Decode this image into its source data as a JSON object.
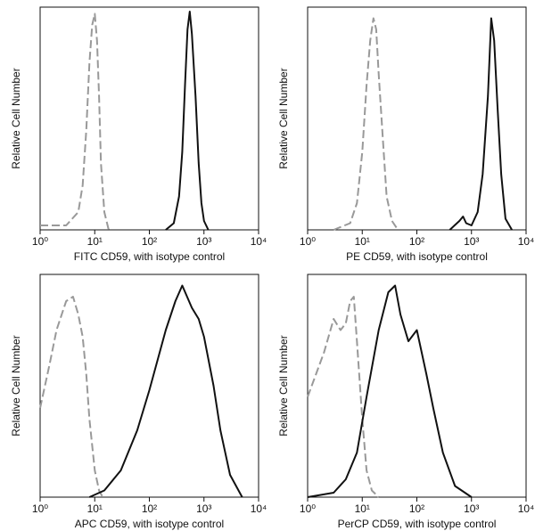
{
  "chart_data": [
    {
      "type": "line",
      "x_label": "FITC CD59, with isotype control",
      "y_label": "Relative Cell Number",
      "xscale": "log",
      "xlim": [
        1,
        10000
      ],
      "ylim": [
        0,
        100
      ],
      "xticks": [
        {
          "value": 1,
          "label": "10⁰"
        },
        {
          "value": 10,
          "label": "10¹"
        },
        {
          "value": 100,
          "label": "10²"
        },
        {
          "value": 1000,
          "label": "10³"
        },
        {
          "value": 10000,
          "label": "10⁴"
        }
      ],
      "series": [
        {
          "color": "#999999",
          "dashed": true,
          "x": [
            1,
            3,
            5,
            6,
            7,
            8,
            9,
            10,
            11,
            12,
            13,
            15,
            18
          ],
          "values": [
            2,
            2,
            8,
            20,
            45,
            75,
            92,
            97,
            85,
            60,
            30,
            8,
            0
          ]
        },
        {
          "color": "#111111",
          "dashed": false,
          "x": [
            200,
            280,
            350,
            400,
            450,
            500,
            550,
            600,
            700,
            800,
            900,
            1000,
            1200
          ],
          "values": [
            0,
            3,
            15,
            35,
            65,
            90,
            98,
            88,
            60,
            30,
            12,
            4,
            0
          ]
        }
      ]
    },
    {
      "type": "line",
      "x_label": "PE CD59, with isotype control",
      "y_label": "Relative Cell Number",
      "xscale": "log",
      "xlim": [
        1,
        10000
      ],
      "ylim": [
        0,
        100
      ],
      "xticks": [
        {
          "value": 1,
          "label": "10⁰"
        },
        {
          "value": 10,
          "label": "10¹"
        },
        {
          "value": 100,
          "label": "10²"
        },
        {
          "value": 1000,
          "label": "10³"
        },
        {
          "value": 10000,
          "label": "10⁴"
        }
      ],
      "series": [
        {
          "color": "#999999",
          "dashed": true,
          "x": [
            3,
            6,
            8,
            10,
            12,
            14,
            16,
            18,
            20,
            24,
            28,
            35,
            45
          ],
          "values": [
            0,
            3,
            12,
            35,
            65,
            85,
            95,
            90,
            70,
            40,
            15,
            4,
            0
          ]
        },
        {
          "color": "#111111",
          "dashed": false,
          "x": [
            400,
            600,
            700,
            800,
            1000,
            1300,
            1600,
            2000,
            2300,
            2600,
            3000,
            3500,
            4200,
            5500
          ],
          "values": [
            0,
            4,
            6,
            3,
            2,
            8,
            25,
            60,
            95,
            85,
            55,
            25,
            5,
            0
          ]
        }
      ]
    },
    {
      "type": "line",
      "x_label": "APC CD59, with isotype control",
      "y_label": "Relative Cell Number",
      "xscale": "log",
      "xlim": [
        1,
        10000
      ],
      "ylim": [
        0,
        100
      ],
      "xticks": [
        {
          "value": 1,
          "label": "10⁰"
        },
        {
          "value": 10,
          "label": "10¹"
        },
        {
          "value": 100,
          "label": "10²"
        },
        {
          "value": 1000,
          "label": "10³"
        },
        {
          "value": 10000,
          "label": "10⁴"
        }
      ],
      "series": [
        {
          "color": "#999999",
          "dashed": true,
          "x": [
            1,
            1.5,
            2,
            3,
            4,
            5,
            6,
            7,
            8,
            10,
            12,
            14
          ],
          "values": [
            40,
            60,
            75,
            88,
            90,
            82,
            72,
            55,
            35,
            12,
            3,
            0
          ]
        },
        {
          "color": "#111111",
          "dashed": false,
          "x": [
            8,
            15,
            30,
            60,
            100,
            200,
            300,
            400,
            600,
            800,
            1000,
            1500,
            2000,
            3000,
            5000
          ],
          "values": [
            0,
            3,
            12,
            30,
            48,
            75,
            88,
            95,
            85,
            80,
            72,
            50,
            30,
            10,
            0
          ]
        }
      ]
    },
    {
      "type": "line",
      "x_label": "PerCP CD59, with isotype control",
      "y_label": "Relative Cell Number",
      "xscale": "log",
      "xlim": [
        1,
        10000
      ],
      "ylim": [
        0,
        100
      ],
      "xticks": [
        {
          "value": 1,
          "label": "10⁰"
        },
        {
          "value": 10,
          "label": "10¹"
        },
        {
          "value": 100,
          "label": "10²"
        },
        {
          "value": 1000,
          "label": "10³"
        },
        {
          "value": 10000,
          "label": "10⁴"
        }
      ],
      "series": [
        {
          "color": "#999999",
          "dashed": true,
          "x": [
            1,
            2,
            3,
            4,
            5,
            6,
            7,
            8,
            10,
            12,
            15,
            20
          ],
          "values": [
            45,
            65,
            80,
            75,
            78,
            88,
            90,
            70,
            35,
            12,
            3,
            0
          ]
        },
        {
          "color": "#111111",
          "dashed": false,
          "x": [
            1,
            3,
            5,
            8,
            12,
            20,
            30,
            40,
            50,
            70,
            100,
            150,
            200,
            300,
            500,
            1000
          ],
          "values": [
            0,
            2,
            8,
            20,
            45,
            75,
            92,
            95,
            82,
            70,
            75,
            55,
            40,
            20,
            5,
            0
          ]
        }
      ]
    }
  ]
}
